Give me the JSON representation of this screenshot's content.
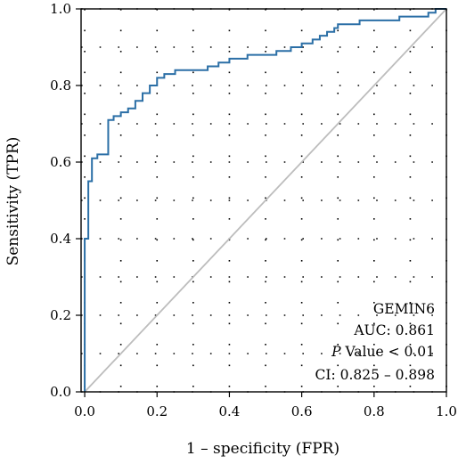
{
  "chart_data": {
    "type": "line",
    "xlabel": "1 – specificity (FPR)",
    "ylabel": "Sensitivity (TPR)",
    "xlim": [
      -0.01,
      1.0
    ],
    "ylim": [
      0.0,
      1.0
    ],
    "x_ticks": [
      "0.0",
      "0.2",
      "0.4",
      "0.6",
      "0.8",
      "1.0"
    ],
    "y_ticks": [
      "0.0",
      "0.2",
      "0.4",
      "0.6",
      "0.8",
      "1.0"
    ],
    "grid": "dotted",
    "colors": {
      "roc": "#2b6fa6",
      "diagonal": "#bdbdbd",
      "grid": "#000000"
    },
    "annotations": {
      "gene": "GEMIN6",
      "auc": "AUC: 0.861",
      "p_italic": "P",
      "p_rest": " Value < 0.01",
      "ci": "CI: 0.825 – 0.898"
    },
    "series": [
      {
        "x": [
          0,
          0,
          0.01,
          0.01,
          0.02,
          0.02,
          0.035,
          0.035,
          0.05,
          0.05,
          0.065,
          0.065,
          0.08,
          0.08,
          0.1,
          0.1,
          0.12,
          0.12,
          0.14,
          0.14,
          0.16,
          0.16,
          0.18,
          0.18,
          0.2,
          0.2,
          0.22,
          0.22,
          0.25,
          0.25,
          0.3,
          0.3,
          0.34,
          0.34,
          0.37,
          0.37,
          0.4,
          0.4,
          0.45,
          0.45,
          0.53,
          0.53,
          0.57,
          0.57,
          0.6,
          0.6,
          0.63,
          0.63,
          0.65,
          0.65,
          0.67,
          0.67,
          0.69,
          0.69,
          0.7,
          0.7,
          0.72,
          0.72,
          0.76,
          0.76,
          0.79,
          0.79,
          0.83,
          0.83,
          0.87,
          0.87,
          0.9,
          0.9,
          0.95,
          0.95,
          0.97,
          0.97,
          1.0
        ],
        "y": [
          0,
          0.4,
          0.4,
          0.55,
          0.55,
          0.61,
          0.61,
          0.62,
          0.62,
          0.62,
          0.62,
          0.71,
          0.71,
          0.72,
          0.72,
          0.73,
          0.73,
          0.74,
          0.74,
          0.76,
          0.76,
          0.78,
          0.78,
          0.8,
          0.8,
          0.82,
          0.82,
          0.83,
          0.83,
          0.84,
          0.84,
          0.84,
          0.84,
          0.85,
          0.85,
          0.86,
          0.86,
          0.87,
          0.87,
          0.88,
          0.88,
          0.89,
          0.89,
          0.9,
          0.9,
          0.91,
          0.91,
          0.92,
          0.92,
          0.93,
          0.93,
          0.94,
          0.94,
          0.95,
          0.95,
          0.96,
          0.96,
          0.96,
          0.96,
          0.97,
          0.97,
          0.97,
          0.97,
          0.97,
          0.97,
          0.98,
          0.98,
          0.98,
          0.98,
          0.99,
          0.99,
          1.0,
          1.0
        ]
      }
    ]
  }
}
